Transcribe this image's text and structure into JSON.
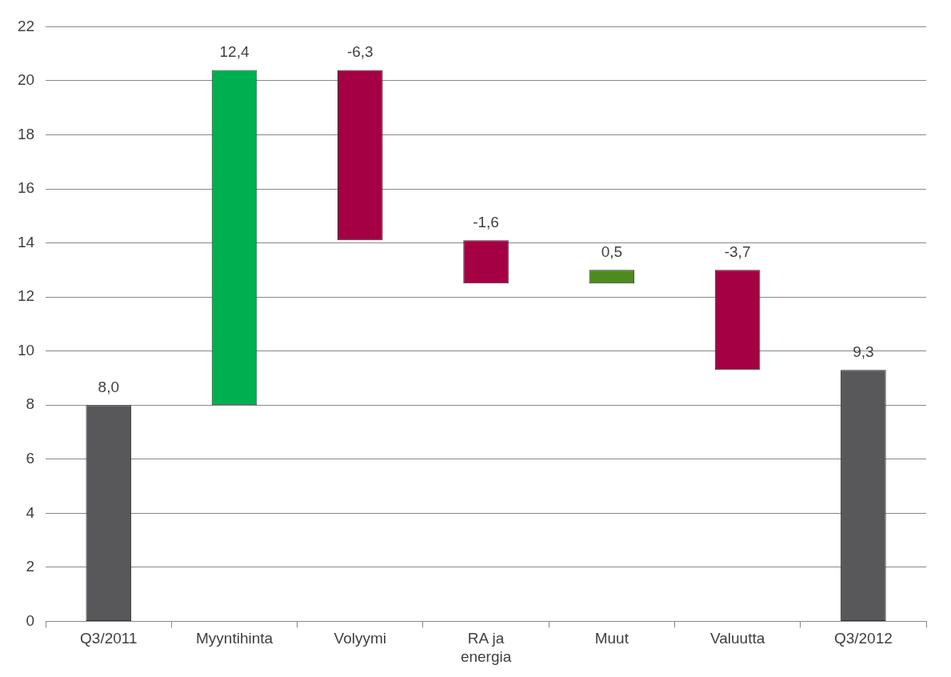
{
  "chart_data": {
    "type": "bar",
    "categories": [
      "Q3/2011",
      "Myyntihinta",
      "Volyymi",
      "RA ja energia",
      "Muut",
      "Valuutta",
      "Q3/2012"
    ],
    "values": [
      8.0,
      12.4,
      -6.3,
      -1.6,
      0.5,
      -3.7,
      9.3
    ],
    "base": [
      0,
      8.0,
      20.4,
      14.1,
      12.5,
      13.0,
      0
    ],
    "colors": [
      "#58585b",
      "#00b050",
      "#a50044",
      "#a50044",
      "#4e8a1e",
      "#a50044",
      "#58585b"
    ],
    "value_labels": [
      "8,0",
      "12,4",
      "-6,3",
      "-1,6",
      "0,5",
      "-3,7",
      "9,3"
    ],
    "ylim": [
      0,
      22
    ],
    "yticks": [
      0,
      2,
      4,
      6,
      8,
      10,
      12,
      14,
      16,
      18,
      20,
      22
    ],
    "grid": "y",
    "legend": false
  }
}
